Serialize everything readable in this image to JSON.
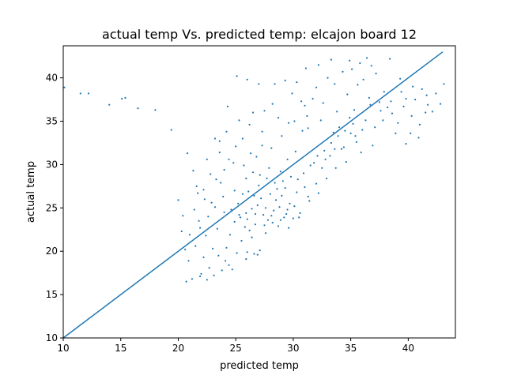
{
  "chart_data": {
    "type": "scatter",
    "title": "actual temp Vs. predicted temp: elcajon board 12",
    "xlabel": "predicted temp",
    "ylabel": "actual temp",
    "xlim": [
      10,
      44.1
    ],
    "ylim": [
      10,
      43.7
    ],
    "xticks": [
      10,
      15,
      20,
      25,
      30,
      35,
      40
    ],
    "yticks": [
      10,
      15,
      20,
      25,
      30,
      35,
      40
    ],
    "grid": false,
    "colors": {
      "series": "#1f77b4"
    },
    "series": [
      {
        "kind": "scatter",
        "points": [
          [
            10.1,
            38.9
          ],
          [
            11.5,
            38.2
          ],
          [
            12.2,
            38.2
          ],
          [
            14.0,
            36.9
          ],
          [
            15.1,
            37.6
          ],
          [
            15.4,
            37.7
          ],
          [
            16.5,
            36.5
          ],
          [
            18.0,
            36.3
          ],
          [
            19.4,
            34.0
          ],
          [
            20.8,
            31.3
          ],
          [
            21.3,
            29.3
          ],
          [
            22.5,
            30.6
          ],
          [
            23.2,
            33.0
          ],
          [
            24.3,
            36.7
          ],
          [
            25.1,
            40.2
          ],
          [
            26.0,
            39.8
          ],
          [
            27.0,
            39.3
          ],
          [
            28.4,
            39.3
          ],
          [
            29.3,
            39.7
          ],
          [
            30.3,
            39.5
          ],
          [
            31.1,
            41.1
          ],
          [
            32.2,
            41.5
          ],
          [
            33.3,
            42.1
          ],
          [
            34.9,
            42.0
          ],
          [
            35.8,
            41.7
          ],
          [
            36.4,
            42.3
          ],
          [
            38.4,
            42.2
          ],
          [
            39.8,
            37.6
          ],
          [
            40.3,
            35.6
          ],
          [
            41.5,
            36.0
          ],
          [
            42.4,
            38.2
          ],
          [
            43.1,
            39.3
          ],
          [
            40.2,
            33.6
          ],
          [
            36.6,
            37.7
          ],
          [
            37.1,
            34.3
          ],
          [
            35.4,
            33.3
          ],
          [
            34.2,
            31.8
          ],
          [
            33.5,
            33.7
          ],
          [
            32.4,
            35.1
          ],
          [
            31.0,
            36.8
          ],
          [
            29.6,
            34.8
          ],
          [
            28.7,
            35.4
          ],
          [
            27.3,
            33.8
          ],
          [
            26.5,
            36.0
          ],
          [
            25.6,
            33.0
          ],
          [
            24.8,
            30.2
          ],
          [
            23.6,
            31.4
          ],
          [
            22.2,
            27.1
          ],
          [
            21.4,
            24.8
          ],
          [
            20.0,
            25.9
          ],
          [
            20.7,
            16.5
          ],
          [
            21.2,
            16.8
          ],
          [
            21.9,
            17.1
          ],
          [
            22.5,
            16.7
          ],
          [
            23.1,
            17.2
          ],
          [
            23.8,
            17.8
          ],
          [
            24.4,
            18.4
          ],
          [
            25.1,
            19.8
          ],
          [
            26.0,
            19.9
          ],
          [
            26.6,
            19.7
          ],
          [
            27.1,
            20.1
          ],
          [
            23.0,
            20.3
          ],
          [
            22.4,
            21.8
          ],
          [
            23.4,
            22.6
          ],
          [
            24.5,
            21.9
          ],
          [
            24.9,
            23.4
          ],
          [
            25.4,
            23.9
          ],
          [
            25.9,
            24.4
          ],
          [
            26.4,
            24.9
          ],
          [
            26.9,
            25.3
          ],
          [
            27.4,
            24.2
          ],
          [
            27.8,
            23.6
          ],
          [
            28.3,
            24.7
          ],
          [
            28.8,
            25.1
          ],
          [
            29.4,
            24.3
          ],
          [
            30.0,
            23.8
          ],
          [
            24.6,
            24.8
          ],
          [
            25.2,
            25.5
          ],
          [
            25.8,
            22.8
          ],
          [
            26.2,
            22.4
          ],
          [
            26.7,
            23.1
          ],
          [
            27.2,
            26.1
          ],
          [
            28.0,
            26.6
          ],
          [
            28.6,
            27.2
          ],
          [
            29.1,
            28.1
          ],
          [
            29.8,
            28.6
          ],
          [
            30.4,
            28.3
          ],
          [
            31.0,
            27.4
          ],
          [
            31.5,
            29.9
          ],
          [
            32.1,
            31.0
          ],
          [
            32.7,
            31.6
          ],
          [
            33.3,
            32.5
          ],
          [
            33.9,
            33.3
          ],
          [
            34.4,
            32.0
          ],
          [
            35.0,
            33.6
          ],
          [
            35.5,
            32.6
          ],
          [
            29.5,
            30.6
          ],
          [
            30.8,
            33.9
          ],
          [
            31.3,
            34.2
          ],
          [
            30.2,
            31.5
          ],
          [
            28.9,
            29.2
          ],
          [
            27.9,
            29.6
          ],
          [
            26.8,
            30.9
          ],
          [
            25.9,
            28.4
          ],
          [
            24.9,
            27.0
          ],
          [
            23.9,
            26.3
          ],
          [
            22.9,
            25.6
          ],
          [
            21.8,
            23.5
          ],
          [
            21.0,
            21.9
          ],
          [
            20.9,
            18.9
          ],
          [
            22.2,
            19.3
          ],
          [
            23.5,
            19.5
          ],
          [
            24.2,
            20.4
          ],
          [
            25.5,
            21.2
          ],
          [
            26.4,
            21.6
          ],
          [
            27.6,
            22.1
          ],
          [
            28.7,
            22.9
          ],
          [
            29.2,
            23.9
          ],
          [
            30.6,
            24.4
          ],
          [
            31.4,
            25.8
          ],
          [
            32.2,
            26.7
          ],
          [
            32.9,
            28.4
          ],
          [
            33.7,
            29.6
          ],
          [
            34.6,
            30.3
          ],
          [
            35.9,
            31.4
          ],
          [
            36.9,
            32.2
          ],
          [
            37.8,
            35.1
          ],
          [
            38.6,
            35.9
          ],
          [
            39.1,
            34.8
          ],
          [
            39.6,
            36.7
          ],
          [
            40.9,
            33.1
          ],
          [
            41.7,
            36.9
          ],
          [
            33.8,
            36.1
          ],
          [
            34.7,
            38.1
          ],
          [
            35.6,
            39.2
          ],
          [
            36.1,
            39.8
          ],
          [
            37.2,
            40.5
          ],
          [
            33.0,
            40.0
          ],
          [
            32.0,
            38.9
          ],
          [
            31.7,
            37.6
          ],
          [
            30.7,
            37.3
          ],
          [
            29.9,
            38.2
          ],
          [
            28.2,
            37.0
          ],
          [
            27.5,
            36.2
          ],
          [
            26.2,
            34.6
          ],
          [
            25.3,
            35.1
          ],
          [
            24.2,
            33.8
          ],
          [
            23.6,
            32.7
          ],
          [
            22.8,
            28.9
          ],
          [
            21.6,
            27.5
          ],
          [
            20.4,
            24.1
          ],
          [
            20.3,
            22.3
          ],
          [
            21.5,
            20.6
          ],
          [
            22.7,
            18.1
          ],
          [
            24.7,
            17.9
          ],
          [
            25.9,
            19.1
          ],
          [
            26.6,
            26.4
          ],
          [
            27.0,
            27.6
          ],
          [
            27.7,
            28.4
          ],
          [
            28.5,
            25.9
          ],
          [
            29.0,
            26.4
          ],
          [
            29.7,
            25.5
          ],
          [
            30.3,
            26.8
          ],
          [
            30.9,
            29.0
          ],
          [
            31.8,
            30.2
          ],
          [
            32.5,
            29.6
          ],
          [
            33.2,
            31.0
          ],
          [
            34.0,
            34.3
          ],
          [
            34.9,
            35.4
          ],
          [
            35.3,
            36.3
          ],
          [
            36.3,
            35.1
          ],
          [
            37.5,
            37.2
          ],
          [
            38.2,
            36.6
          ],
          [
            39.3,
            39.9
          ],
          [
            40.6,
            37.5
          ],
          [
            41.2,
            38.7
          ],
          [
            42.1,
            36.1
          ],
          [
            42.8,
            37.0
          ],
          [
            39.8,
            32.4
          ],
          [
            41.0,
            34.6
          ],
          [
            38.9,
            33.6
          ],
          [
            37.9,
            38.4
          ],
          [
            36.8,
            41.4
          ],
          [
            35.1,
            41.0
          ],
          [
            34.3,
            40.7
          ],
          [
            33.6,
            39.3
          ],
          [
            32.6,
            37.1
          ],
          [
            31.2,
            35.6
          ],
          [
            30.1,
            35.0
          ],
          [
            29.0,
            33.3
          ],
          [
            28.1,
            31.9
          ],
          [
            27.3,
            32.2
          ],
          [
            26.3,
            31.3
          ],
          [
            25.0,
            32.1
          ],
          [
            24.0,
            29.4
          ],
          [
            23.3,
            28.3
          ],
          [
            22.6,
            24.0
          ],
          [
            21.9,
            22.7
          ],
          [
            20.6,
            20.2
          ],
          [
            22.0,
            17.4
          ],
          [
            24.1,
            18.9
          ],
          [
            26.9,
            19.6
          ],
          [
            25.6,
            26.6
          ],
          [
            26.1,
            26.9
          ],
          [
            27.6,
            25.0
          ],
          [
            28.1,
            24.1
          ],
          [
            28.9,
            23.6
          ],
          [
            29.6,
            22.7
          ],
          [
            30.1,
            25.2
          ],
          [
            29.3,
            27.3
          ],
          [
            28.4,
            27.9
          ],
          [
            27.1,
            28.8
          ],
          [
            26.5,
            29.1
          ],
          [
            25.7,
            29.9
          ],
          [
            24.4,
            30.6
          ],
          [
            23.7,
            27.9
          ],
          [
            22.3,
            26.0
          ],
          [
            21.7,
            26.7
          ],
          [
            23.2,
            25.1
          ],
          [
            24.0,
            24.5
          ],
          [
            25.3,
            24.2
          ],
          [
            26.0,
            23.7
          ],
          [
            26.7,
            24.3
          ],
          [
            27.5,
            23.0
          ],
          [
            28.2,
            23.3
          ],
          [
            29.5,
            24.8
          ],
          [
            30.5,
            23.9
          ],
          [
            31.3,
            26.3
          ],
          [
            32.0,
            27.8
          ],
          [
            32.8,
            30.6
          ],
          [
            33.6,
            31.8
          ],
          [
            34.5,
            33.9
          ],
          [
            35.2,
            34.7
          ],
          [
            36.0,
            34.0
          ],
          [
            36.7,
            36.9
          ],
          [
            37.6,
            36.2
          ],
          [
            38.5,
            37.3
          ],
          [
            39.4,
            38.4
          ],
          [
            40.4,
            39.0
          ],
          [
            41.6,
            38.0
          ]
        ]
      },
      {
        "kind": "line",
        "points": [
          [
            10,
            10
          ],
          [
            43.0,
            43.0
          ]
        ]
      }
    ]
  }
}
